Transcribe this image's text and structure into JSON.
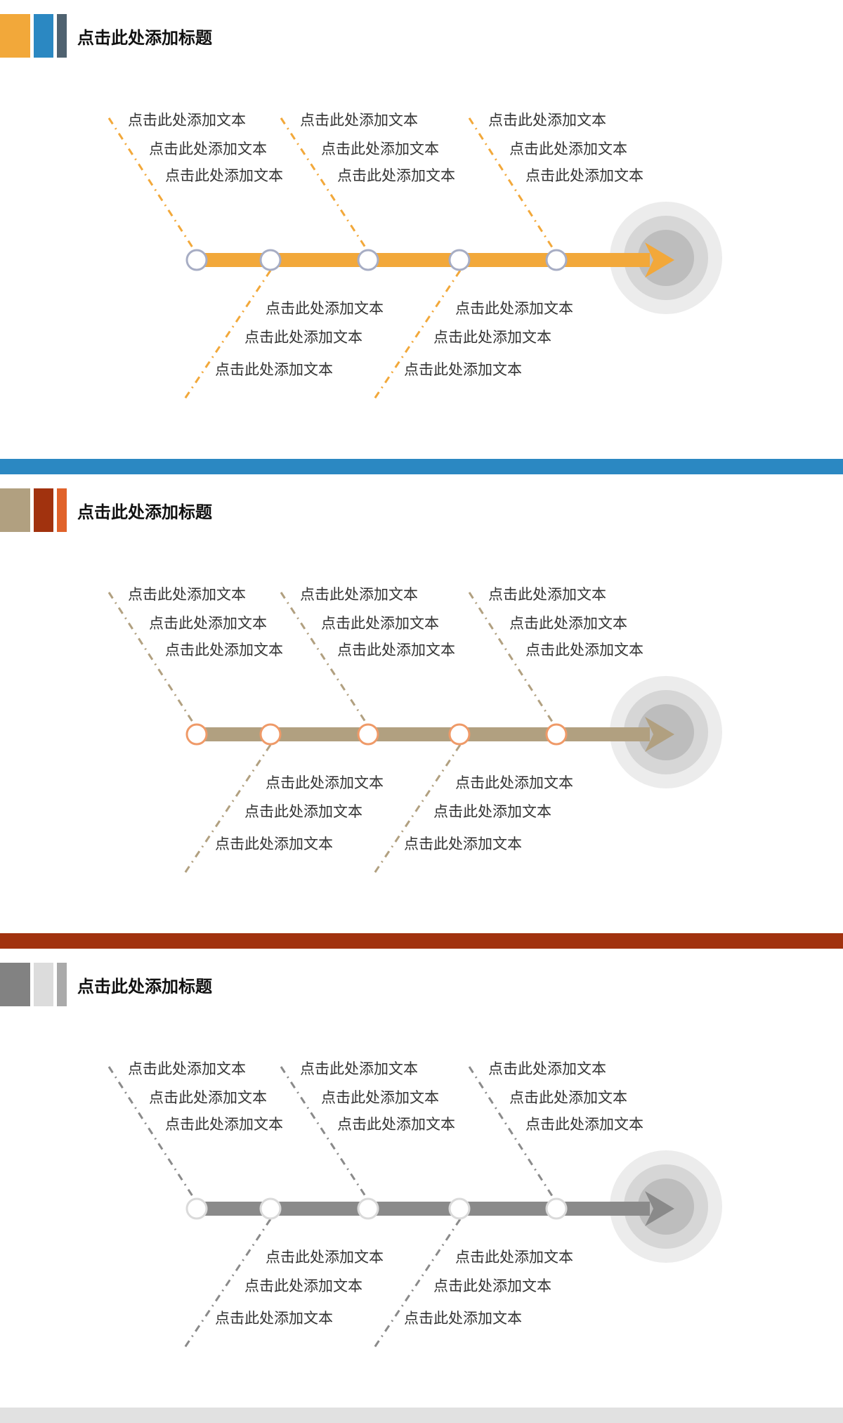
{
  "sections": [
    {
      "title": "点击此处添加标题",
      "colors": {
        "tab1": "#f2a83a",
        "tab2": "#2b88c2",
        "tab3": "#4f6270",
        "line": "#f2a83a",
        "node_stroke": "#a7adc4",
        "dash": "#f2a83a",
        "sep": "#2b88c2"
      },
      "upper": [
        [
          "点击此处添加文本",
          "点击此处添加文本",
          "点击此处添加文本"
        ],
        [
          "点击此处添加文本",
          "点击此处添加文本",
          "点击此处添加文本"
        ],
        [
          "点击此处添加文本",
          "点击此处添加文本",
          "点击此处添加文本"
        ]
      ],
      "lower": [
        [
          "点击此处添加文本",
          "点击此处添加文本",
          "点击此处添加文本"
        ],
        [
          "点击此处添加文本",
          "点击此处添加文本",
          "点击此处添加文本"
        ]
      ]
    },
    {
      "title": "点击此处添加标题",
      "colors": {
        "tab1": "#b1a080",
        "tab2": "#a1320e",
        "tab3": "#e0622a",
        "line": "#b1a080",
        "node_stroke": "#ef9a68",
        "dash": "#b1a080",
        "sep": "#a1320e"
      },
      "upper": [
        [
          "点击此处添加文本",
          "点击此处添加文本",
          "点击此处添加文本"
        ],
        [
          "点击此处添加文本",
          "点击此处添加文本",
          "点击此处添加文本"
        ],
        [
          "点击此处添加文本",
          "点击此处添加文本",
          "点击此处添加文本"
        ]
      ],
      "lower": [
        [
          "点击此处添加文本",
          "点击此处添加文本",
          "点击此处添加文本"
        ],
        [
          "点击此处添加文本",
          "点击此处添加文本",
          "点击此处添加文本"
        ]
      ]
    },
    {
      "title": "点击此处添加标题",
      "colors": {
        "tab1": "#828282",
        "tab2": "#dcdcdc",
        "tab3": "#aaaaaa",
        "line": "#8a8a8a",
        "node_stroke": "#dadada",
        "dash": "#8a8a8a",
        "sep": "#e1e1e1"
      },
      "upper": [
        [
          "点击此处添加文本",
          "点击此处添加文本",
          "点击此处添加文本"
        ],
        [
          "点击此处添加文本",
          "点击此处添加文本",
          "点击此处添加文本"
        ],
        [
          "点击此处添加文本",
          "点击此处添加文本",
          "点击此处添加文本"
        ]
      ],
      "lower": [
        [
          "点击此处添加文本",
          "点击此处添加文本",
          "点击此处添加文本"
        ],
        [
          "点击此处添加文本",
          "点击此处添加文本",
          "点击此处添加文本"
        ]
      ]
    }
  ],
  "target_icon": "arrow-target-icon"
}
